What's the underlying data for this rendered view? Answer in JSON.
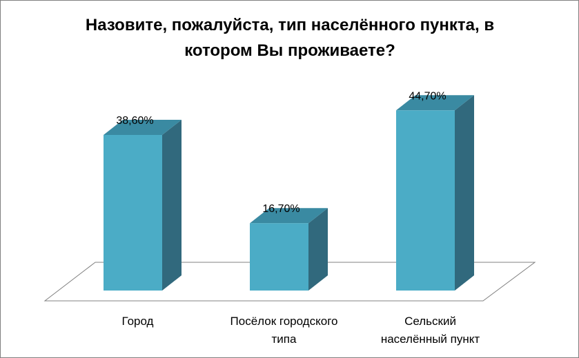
{
  "chart_data": {
    "type": "bar",
    "style": "3d-column",
    "title": [
      "Назовите, пожалуйста, тип населённого пункта, в",
      "котором Вы проживаете?"
    ],
    "categories": [
      [
        "Город"
      ],
      [
        "Посёлок городского",
        "типа"
      ],
      [
        "Сельский",
        "населённый пункт"
      ]
    ],
    "values": [
      38.6,
      16.7,
      44.7
    ],
    "data_labels": [
      "38,60%",
      "16,70%",
      "44,70%"
    ],
    "ylim": [
      0,
      50
    ],
    "grid": false,
    "legend": "none",
    "colors": {
      "front": "#4bacc6",
      "top": "#3a8aa2",
      "side": "#31697d",
      "floor": "#ffffff",
      "floor_stroke": "#808080"
    }
  }
}
